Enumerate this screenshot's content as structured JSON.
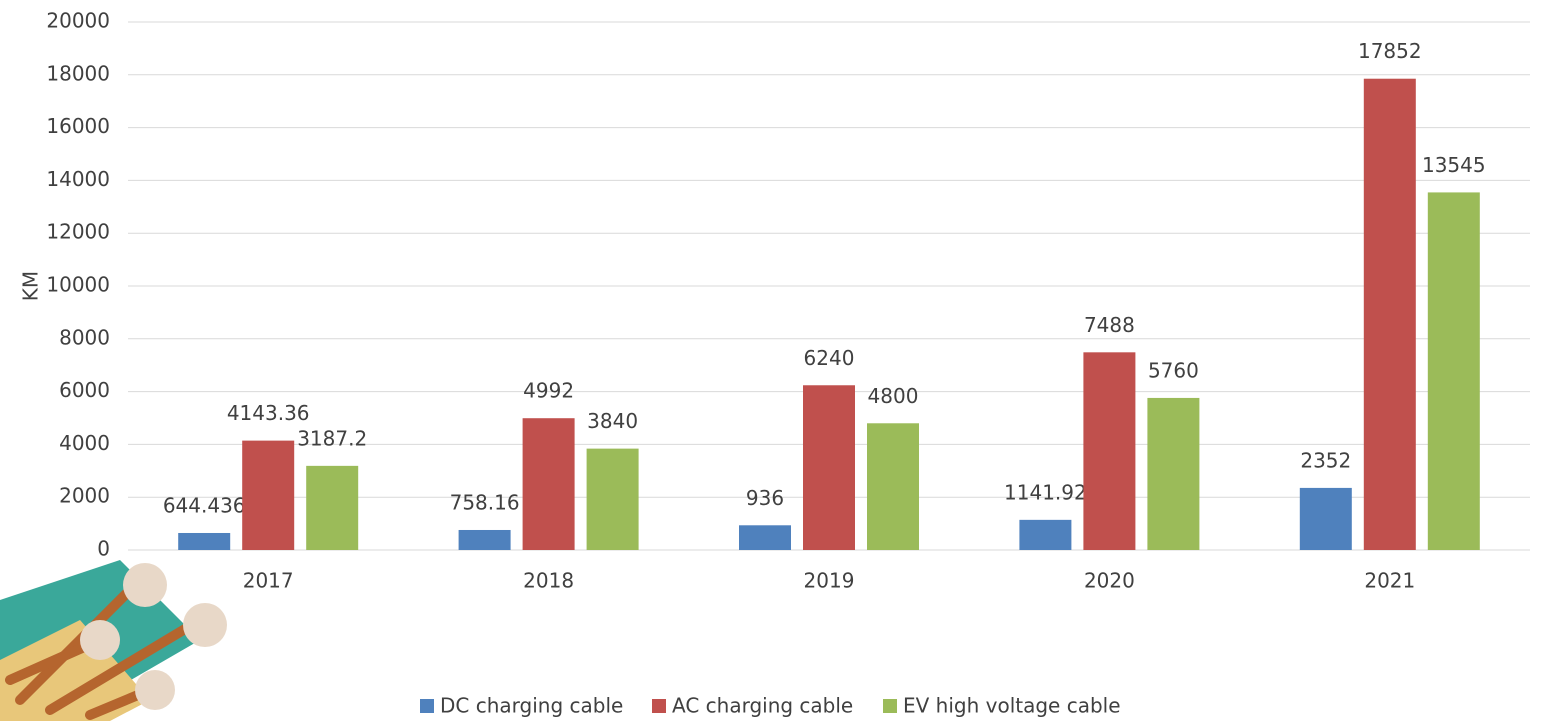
{
  "chart_data": {
    "type": "bar",
    "y_label": "KM",
    "categories": [
      "2017",
      "2018",
      "2019",
      "2020",
      "2021"
    ],
    "series": [
      {
        "name": "DC charging cable",
        "color": "#4f81bd",
        "values": [
          644.436,
          758.16,
          936,
          1141.92,
          2352
        ]
      },
      {
        "name": "AC charging cable",
        "color": "#c0504d",
        "values": [
          4143.36,
          4992,
          6240,
          7488,
          17852
        ]
      },
      {
        "name": "EV high voltage cable",
        "color": "#9bbb59",
        "values": [
          3187.2,
          3840,
          4800,
          5760,
          13545
        ]
      }
    ],
    "ylim": [
      0,
      20000
    ],
    "yticks": [
      0,
      2000,
      4000,
      6000,
      8000,
      10000,
      12000,
      14000,
      16000,
      18000,
      20000
    ],
    "grid": true,
    "legend": "bottom"
  }
}
